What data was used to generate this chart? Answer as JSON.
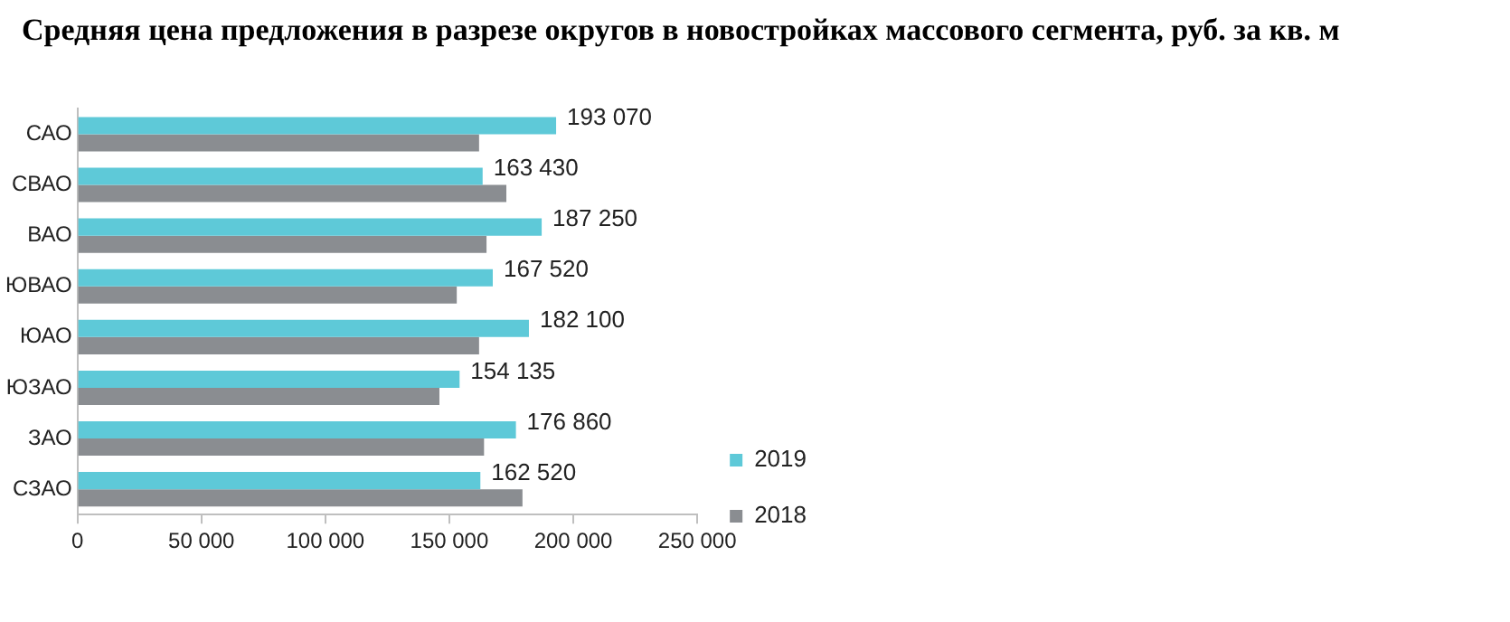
{
  "chart_data": {
    "type": "bar",
    "orientation": "horizontal",
    "title": "Средняя цена предложения в разрезе округов в новостройках массового сегмента, руб. за кв. м",
    "categories": [
      "САО",
      "СВАО",
      "ВАО",
      "ЮВАО",
      "ЮАО",
      "ЮЗАО",
      "ЗАО",
      "СЗАО"
    ],
    "series": [
      {
        "name": "2019",
        "color": "#5ec9d8",
        "values": [
          193070,
          163430,
          187250,
          167520,
          182100,
          154135,
          176860,
          162520
        ],
        "value_labels": [
          "193 070",
          "163 430",
          "187 250",
          "167 520",
          "182 100",
          "154 135",
          "176 860",
          "162 520"
        ]
      },
      {
        "name": "2018",
        "color": "#8a8d91",
        "values": [
          162000,
          173000,
          165000,
          153000,
          162000,
          146000,
          164000,
          179500
        ]
      }
    ],
    "xlim": [
      0,
      250000
    ],
    "xticks": [
      {
        "value": 0,
        "label": "0"
      },
      {
        "value": 50000,
        "label": "50 000"
      },
      {
        "value": 100000,
        "label": "100 000"
      },
      {
        "value": 150000,
        "label": "150 000"
      },
      {
        "value": 200000,
        "label": "200 000"
      },
      {
        "value": 250000,
        "label": "250 000"
      }
    ],
    "grid": false,
    "legend": "right"
  }
}
